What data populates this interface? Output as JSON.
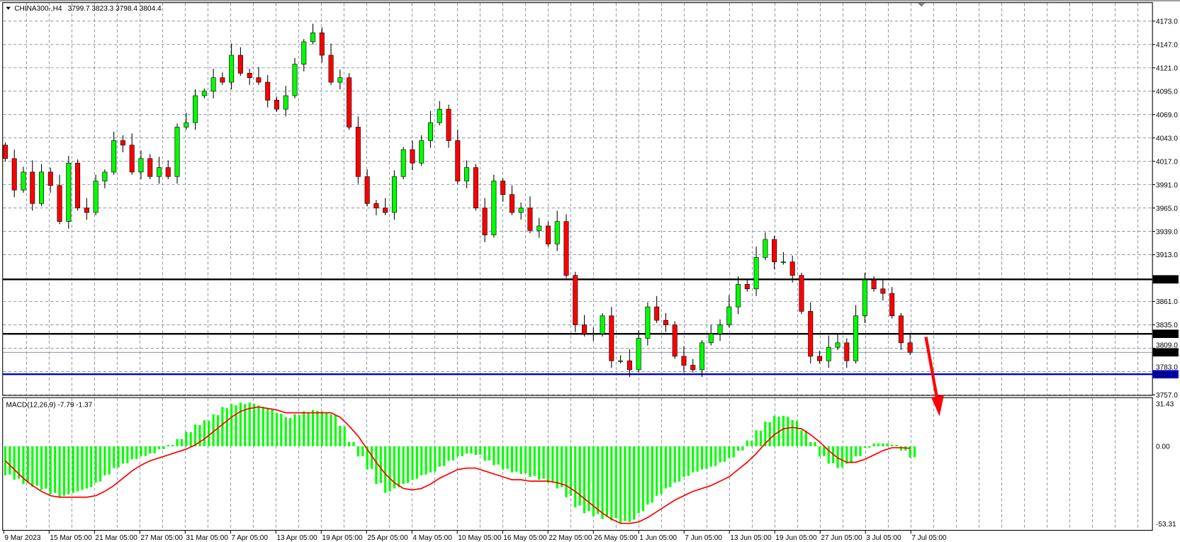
{
  "header": {
    "symbol": "CHINA300-,H4",
    "ohlc": "3799.7 3823.3 3798.4 3804.4"
  },
  "macd": {
    "label": "MACD(12,26,9) -7.79 -1.37",
    "axis": [
      "31.43",
      "0.00",
      "-53.31"
    ]
  },
  "colors": {
    "bull": "#00ff00",
    "bear": "#ff0000",
    "macd_hist": "#00ff00",
    "signal": "#ff0000",
    "hline": "#000000",
    "support": "#0000c8",
    "arrow": "#ff0000",
    "grid": "#7a8696"
  },
  "price_axis": [
    "4173.0",
    "4147.0",
    "4121.0",
    "4095.0",
    "4069.0",
    "4043.0",
    "4017.0",
    "3991.0",
    "3965.0",
    "3939.0",
    "3913.0",
    "3861.0",
    "3835.0",
    "3809.0",
    "3783.0",
    "3757.0"
  ],
  "levels": [
    {
      "label": "3885.6",
      "value": 3885.6,
      "kind": "resistance"
    },
    {
      "label": "3825.0",
      "value": 3825.0,
      "kind": "resistance"
    },
    {
      "label": "3804.4",
      "value": 3804.4,
      "kind": "current"
    },
    {
      "label": "3780.0",
      "value": 3780.0,
      "kind": "support"
    }
  ],
  "time_axis": [
    "9 Mar 2023",
    "15 Mar 05:00",
    "21 Mar 05:00",
    "27 Mar 05:00",
    "31 Mar 05:00",
    "7 Apr 05:00",
    "13 Apr 05:00",
    "19 Apr 05:00",
    "25 Apr 05:00",
    "4 May 05:00",
    "10 May 05:00",
    "16 May 05:00",
    "22 May 05:00",
    "26 May 05:00",
    "1 Jun 05:00",
    "7 Jun 05:00",
    "13 Jun 05:00",
    "19 Jun 05:00",
    "27 Jun 05:00",
    "3 Jul 05:00",
    "7 Jul 05:00"
  ],
  "chart_data": [
    {
      "type": "candlestick",
      "title": "CHINA300-,H4",
      "ylim": [
        3757,
        4173
      ],
      "grid": true,
      "close": [
        4020,
        3985,
        4005,
        3970,
        4005,
        3990,
        3950,
        4015,
        3965,
        3960,
        3995,
        4005,
        4040,
        4035,
        4005,
        4020,
        4000,
        4010,
        4000,
        4055,
        4060,
        4090,
        4095,
        4110,
        4105,
        4135,
        4115,
        4110,
        4105,
        4085,
        4075,
        4090,
        4125,
        4150,
        4160,
        4135,
        4105,
        4110,
        4055,
        4000,
        3970,
        3965,
        3960,
        4000,
        4030,
        4015,
        4040,
        4060,
        4075,
        4040,
        3995,
        4010,
        3965,
        3935,
        3995,
        3980,
        3960,
        3965,
        3940,
        3945,
        3925,
        3950,
        3890,
        3835,
        3825,
        3825,
        3845,
        3795,
        3795,
        3785,
        3820,
        3855,
        3840,
        3835,
        3800,
        3790,
        3785,
        3815,
        3825,
        3835,
        3855,
        3880,
        3875,
        3910,
        3930,
        3905,
        3905,
        3890,
        3850,
        3800,
        3795,
        3810,
        3815,
        3795,
        3845,
        3885,
        3875,
        3870,
        3845,
        3815,
        3804.4
      ]
    },
    {
      "type": "bar+line",
      "title": "MACD(12,26,9)",
      "ylim": [
        -53.31,
        31.43
      ],
      "series": [
        {
          "name": "MACD",
          "values": [
            -20,
            -23,
            -26,
            -28,
            -30,
            -33,
            -35,
            -33,
            -31,
            -29,
            -25,
            -20,
            -15,
            -12,
            -9,
            -7,
            -5,
            -2,
            1,
            5,
            10,
            15,
            18,
            22,
            27,
            29,
            30,
            30,
            28,
            26,
            23,
            20,
            22,
            24,
            25,
            24,
            22,
            14,
            3,
            -7,
            -16,
            -26,
            -32,
            -29,
            -26,
            -23,
            -20,
            -18,
            -14,
            -10,
            -7,
            -5,
            -6,
            -10,
            -13,
            -16,
            -18,
            -19,
            -21,
            -23,
            -25,
            -29,
            -35,
            -42,
            -46,
            -48,
            -50,
            -51,
            -53,
            -52,
            -46,
            -40,
            -34,
            -29,
            -25,
            -21,
            -18,
            -16,
            -14,
            -11,
            -8,
            -3,
            4,
            11,
            17,
            21,
            21,
            18,
            11,
            3,
            -7,
            -12,
            -15,
            -12,
            -7,
            -1,
            2,
            2,
            1,
            -3,
            -7.79
          ]
        },
        {
          "name": "Signal",
          "values": [
            -10,
            -16,
            -22,
            -27,
            -31,
            -34,
            -35,
            -35,
            -35,
            -35,
            -34,
            -31,
            -27,
            -22,
            -17,
            -13,
            -10,
            -8,
            -6,
            -4,
            -2,
            1,
            5,
            10,
            15,
            20,
            24,
            26,
            27,
            26,
            25,
            23,
            23,
            23,
            23,
            23,
            23,
            20,
            14,
            7,
            -2,
            -11,
            -19,
            -25,
            -29,
            -30,
            -29,
            -26,
            -22,
            -19,
            -16,
            -15,
            -15,
            -17,
            -19,
            -21,
            -23,
            -23,
            -24,
            -24,
            -24,
            -25,
            -27,
            -31,
            -36,
            -41,
            -46,
            -50,
            -53,
            -53,
            -52,
            -49,
            -45,
            -41,
            -37,
            -34,
            -31,
            -29,
            -27,
            -24,
            -21,
            -16,
            -11,
            -5,
            2,
            8,
            12,
            13,
            12,
            8,
            3,
            -3,
            -8,
            -11,
            -11,
            -9,
            -6,
            -3,
            -1,
            -1,
            -1.37
          ]
        }
      ]
    }
  ]
}
